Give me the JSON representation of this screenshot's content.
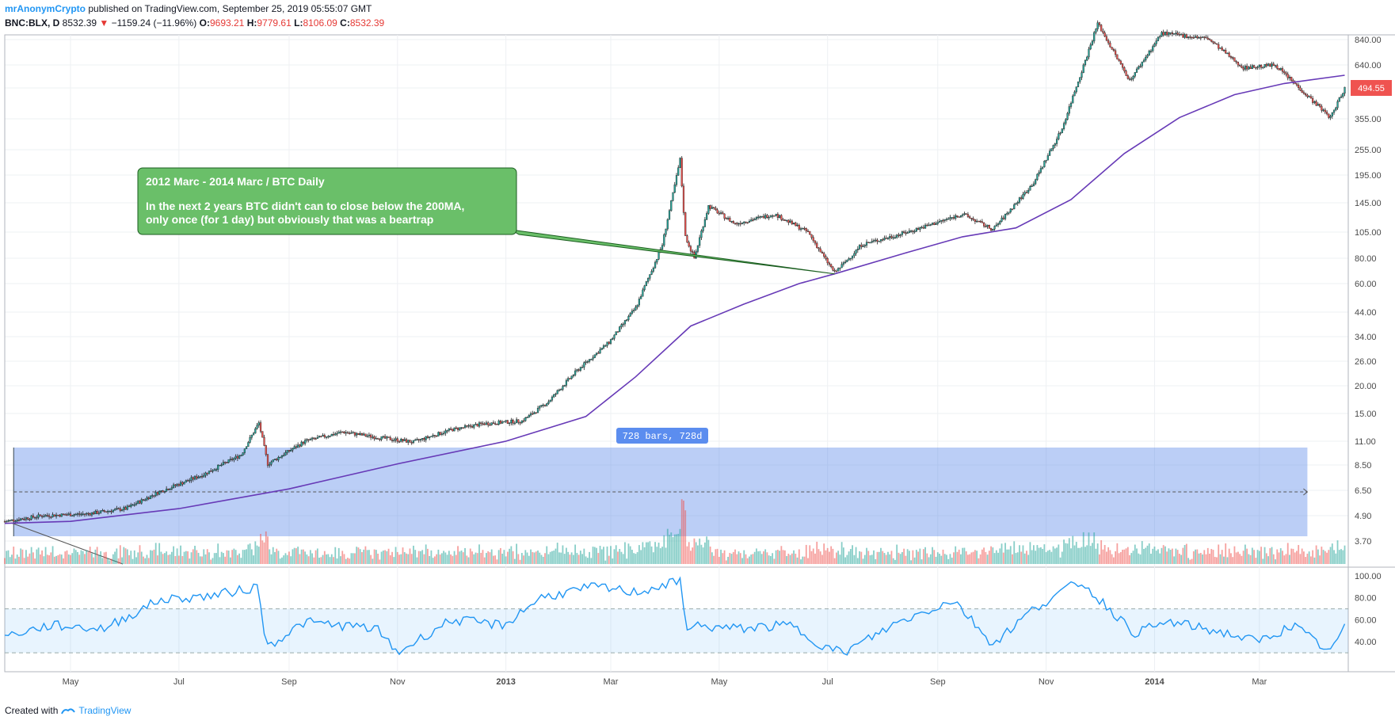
{
  "header": {
    "author": "mrAnonymCrypto",
    "published_text": "published on TradingView.com, September 25, 2019 05:55:07 GMT"
  },
  "ohlc": {
    "symbol": "BNC:BLX, D",
    "last": "8532.39",
    "change": "−1159.24 (−11.96%)",
    "o_label": "O:",
    "o": "9693.21",
    "h_label": "H:",
    "h": "9779.61",
    "l_label": "L:",
    "l": "8106.09",
    "c_label": "C:",
    "c": "8532.39"
  },
  "annotation": {
    "title": "2012 Marc - 2014 Marc / BTC Daily",
    "line1": "In the next 2 years BTC didn't can to close below the 200MA,",
    "line2": "only once (for 1 day) but obviously that was a beartrap"
  },
  "range_label": "728 bars, 728d",
  "current_price_tag": "494.55",
  "footer": {
    "created_with": "Created with",
    "brand": "TradingView"
  },
  "colors": {
    "up": "#26a69a",
    "down": "#ef5350",
    "ma": "#673ab7",
    "rsi": "#2196f3",
    "range": "#4c7ee8",
    "callout": "#6abf69"
  },
  "chart_data": [
    {
      "type": "candlestick",
      "title": "BNC:BLX, D",
      "y_scale": "log",
      "y_ticks": [
        "840.00",
        "640.00",
        "494.55",
        "355.00",
        "255.00",
        "195.00",
        "145.00",
        "105.00",
        "80.00",
        "60.00",
        "44.00",
        "34.00",
        "26.00",
        "20.00",
        "15.00",
        "11.00",
        "8.50",
        "6.50",
        "4.90",
        "3.70"
      ],
      "x_ticks": [
        "May",
        "Jul",
        "Sep",
        "Nov",
        "2013",
        "Mar",
        "May",
        "Jul",
        "Sep",
        "Nov",
        "2014",
        "Mar"
      ],
      "price_path": [
        [
          "2012-03-25",
          4.6
        ],
        [
          "2012-04-15",
          4.9
        ],
        [
          "2012-05-10",
          5.0
        ],
        [
          "2012-06-01",
          5.3
        ],
        [
          "2012-06-20",
          6.4
        ],
        [
          "2012-07-15",
          7.7
        ],
        [
          "2012-08-05",
          9.5
        ],
        [
          "2012-08-15",
          13.5
        ],
        [
          "2012-08-20",
          8.6
        ],
        [
          "2012-09-10",
          11.0
        ],
        [
          "2012-10-01",
          12.2
        ],
        [
          "2012-10-20",
          11.5
        ],
        [
          "2012-11-10",
          10.9
        ],
        [
          "2012-12-01",
          12.5
        ],
        [
          "2012-12-20",
          13.4
        ],
        [
          "2013-01-10",
          13.8
        ],
        [
          "2013-01-25",
          17.0
        ],
        [
          "2013-02-10",
          23.5
        ],
        [
          "2013-02-28",
          32.0
        ],
        [
          "2013-03-15",
          46.0
        ],
        [
          "2013-03-30",
          92.0
        ],
        [
          "2013-04-09",
          230.0
        ],
        [
          "2013-04-12",
          100.0
        ],
        [
          "2013-04-17",
          80.0
        ],
        [
          "2013-04-25",
          140.0
        ],
        [
          "2013-05-10",
          115.0
        ],
        [
          "2013-06-01",
          128.0
        ],
        [
          "2013-06-20",
          105.0
        ],
        [
          "2013-07-05",
          68.0
        ],
        [
          "2013-07-20",
          92.0
        ],
        [
          "2013-08-15",
          105.0
        ],
        [
          "2013-09-15",
          128.0
        ],
        [
          "2013-10-02",
          108.0
        ],
        [
          "2013-10-25",
          180.0
        ],
        [
          "2013-11-10",
          320.0
        ],
        [
          "2013-11-30",
          1000.0
        ],
        [
          "2013-12-18",
          540.0
        ],
        [
          "2014-01-05",
          900.0
        ],
        [
          "2014-01-31",
          850.0
        ],
        [
          "2014-02-20",
          620.0
        ],
        [
          "2014-03-10",
          640.0
        ],
        [
          "2014-03-25",
          480.0
        ],
        [
          "2014-04-10",
          360.0
        ],
        [
          "2014-04-18",
          494.55
        ]
      ],
      "ma_200_path": [
        [
          "2012-03-25",
          4.5
        ],
        [
          "2012-05-01",
          4.6
        ],
        [
          "2012-07-01",
          5.3
        ],
        [
          "2012-09-01",
          6.6
        ],
        [
          "2012-11-01",
          8.6
        ],
        [
          "2013-01-01",
          11.0
        ],
        [
          "2013-02-15",
          14.5
        ],
        [
          "2013-03-15",
          22.0
        ],
        [
          "2013-04-15",
          38.0
        ],
        [
          "2013-05-15",
          48.0
        ],
        [
          "2013-06-15",
          60.0
        ],
        [
          "2013-07-05",
          67.0
        ],
        [
          "2013-08-15",
          85.0
        ],
        [
          "2013-09-15",
          100.0
        ],
        [
          "2013-10-15",
          110.0
        ],
        [
          "2013-11-15",
          150.0
        ],
        [
          "2013-12-15",
          245.0
        ],
        [
          "2014-01-15",
          360.0
        ],
        [
          "2014-02-15",
          460.0
        ],
        [
          "2014-03-15",
          520.0
        ],
        [
          "2014-04-18",
          570.0
        ]
      ],
      "measure_range": {
        "from": "2012-03-30",
        "to": "2014-03-28",
        "bars": 728,
        "days": 728
      }
    },
    {
      "type": "line",
      "title": "RSI",
      "y_ticks": [
        "100.00",
        "80.00",
        "60.00",
        "40.00"
      ],
      "bands": [
        30,
        70
      ],
      "rsi_path": [
        [
          "2012-03-25",
          45
        ],
        [
          "2012-04-20",
          55
        ],
        [
          "2012-05-20",
          52
        ],
        [
          "2012-06-20",
          78
        ],
        [
          "2012-07-20",
          82
        ],
        [
          "2012-08-15",
          90
        ],
        [
          "2012-08-19",
          35
        ],
        [
          "2012-09-10",
          58
        ],
        [
          "2012-10-20",
          52
        ],
        [
          "2012-11-01",
          30
        ],
        [
          "2012-12-01",
          60
        ],
        [
          "2012-12-31",
          55
        ],
        [
          "2013-01-20",
          80
        ],
        [
          "2013-02-20",
          90
        ],
        [
          "2013-03-15",
          85
        ],
        [
          "2013-04-09",
          95
        ],
        [
          "2013-04-12",
          55
        ],
        [
          "2013-05-10",
          52
        ],
        [
          "2013-06-10",
          55
        ],
        [
          "2013-06-30",
          35
        ],
        [
          "2013-07-10",
          30
        ],
        [
          "2013-08-10",
          58
        ],
        [
          "2013-09-10",
          78
        ],
        [
          "2013-10-02",
          38
        ],
        [
          "2013-10-25",
          70
        ],
        [
          "2013-11-20",
          95
        ],
        [
          "2013-12-10",
          65
        ],
        [
          "2013-12-20",
          48
        ],
        [
          "2014-01-10",
          58
        ],
        [
          "2014-02-10",
          48
        ],
        [
          "2014-02-28",
          40
        ],
        [
          "2014-03-20",
          55
        ],
        [
          "2014-04-10",
          30
        ],
        [
          "2014-04-18",
          55
        ]
      ]
    }
  ]
}
